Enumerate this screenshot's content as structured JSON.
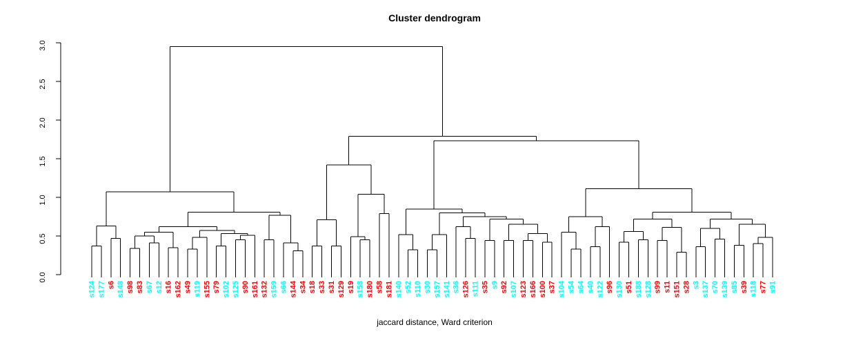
{
  "title": "Cluster dendrogram",
  "caption": "jaccard distance, Ward criterion",
  "chart_data": {
    "type": "dendrogram",
    "title": "Cluster dendrogram",
    "xlabel": "jaccard distance, Ward criterion",
    "ylabel": "",
    "ylim": [
      0,
      3
    ],
    "grid": false,
    "yticks": [
      "0.0",
      "0.5",
      "1.0",
      "1.5",
      "2.0",
      "2.5",
      "3.0"
    ],
    "colors": {
      "red": "#FF0000",
      "cyan": "#00FFFF",
      "line": "#000000"
    },
    "leaves": [
      {
        "label": "s124",
        "color": "cyan"
      },
      {
        "label": "s177",
        "color": "cyan"
      },
      {
        "label": "s6",
        "color": "red"
      },
      {
        "label": "s148",
        "color": "cyan"
      },
      {
        "label": "s98",
        "color": "red"
      },
      {
        "label": "s83",
        "color": "red"
      },
      {
        "label": "s67",
        "color": "cyan"
      },
      {
        "label": "s12",
        "color": "cyan"
      },
      {
        "label": "s16",
        "color": "red"
      },
      {
        "label": "s162",
        "color": "red"
      },
      {
        "label": "s49",
        "color": "red"
      },
      {
        "label": "s119",
        "color": "cyan"
      },
      {
        "label": "s155",
        "color": "red"
      },
      {
        "label": "s79",
        "color": "red"
      },
      {
        "label": "s102",
        "color": "cyan"
      },
      {
        "label": "s125",
        "color": "cyan"
      },
      {
        "label": "s90",
        "color": "red"
      },
      {
        "label": "s161",
        "color": "red"
      },
      {
        "label": "s132",
        "color": "red"
      },
      {
        "label": "s159",
        "color": "cyan"
      },
      {
        "label": "s66",
        "color": "cyan"
      },
      {
        "label": "s144",
        "color": "red"
      },
      {
        "label": "s34",
        "color": "red"
      },
      {
        "label": "s18",
        "color": "red"
      },
      {
        "label": "s33",
        "color": "red"
      },
      {
        "label": "s31",
        "color": "red"
      },
      {
        "label": "s129",
        "color": "red"
      },
      {
        "label": "s19",
        "color": "red"
      },
      {
        "label": "s158",
        "color": "cyan"
      },
      {
        "label": "s180",
        "color": "red"
      },
      {
        "label": "s58",
        "color": "red"
      },
      {
        "label": "s181",
        "color": "red"
      },
      {
        "label": "s140",
        "color": "cyan"
      },
      {
        "label": "s52",
        "color": "cyan"
      },
      {
        "label": "s110",
        "color": "cyan"
      },
      {
        "label": "s30",
        "color": "cyan"
      },
      {
        "label": "s157",
        "color": "cyan"
      },
      {
        "label": "s141",
        "color": "cyan"
      },
      {
        "label": "s36",
        "color": "cyan"
      },
      {
        "label": "s126",
        "color": "red"
      },
      {
        "label": "s111",
        "color": "cyan"
      },
      {
        "label": "s35",
        "color": "red"
      },
      {
        "label": "s9",
        "color": "cyan"
      },
      {
        "label": "s92",
        "color": "red"
      },
      {
        "label": "s107",
        "color": "cyan"
      },
      {
        "label": "s123",
        "color": "red"
      },
      {
        "label": "s166",
        "color": "red"
      },
      {
        "label": "s100",
        "color": "red"
      },
      {
        "label": "s37",
        "color": "red"
      },
      {
        "label": "s104",
        "color": "cyan"
      },
      {
        "label": "s54",
        "color": "cyan"
      },
      {
        "label": "s64",
        "color": "cyan"
      },
      {
        "label": "s40",
        "color": "cyan"
      },
      {
        "label": "s122",
        "color": "cyan"
      },
      {
        "label": "s96",
        "color": "red"
      },
      {
        "label": "s130",
        "color": "cyan"
      },
      {
        "label": "s51",
        "color": "red"
      },
      {
        "label": "s188",
        "color": "cyan"
      },
      {
        "label": "s128",
        "color": "cyan"
      },
      {
        "label": "s99",
        "color": "red"
      },
      {
        "label": "s11",
        "color": "red"
      },
      {
        "label": "s151",
        "color": "red"
      },
      {
        "label": "s28",
        "color": "red"
      },
      {
        "label": "s3",
        "color": "cyan"
      },
      {
        "label": "s137",
        "color": "cyan"
      },
      {
        "label": "s70",
        "color": "cyan"
      },
      {
        "label": "s139",
        "color": "cyan"
      },
      {
        "label": "s85",
        "color": "cyan"
      },
      {
        "label": "s39",
        "color": "red"
      },
      {
        "label": "s118",
        "color": "cyan"
      },
      {
        "label": "s77",
        "color": "red"
      },
      {
        "label": "s91",
        "color": "cyan"
      }
    ],
    "tree": [
      [
        [
          [
            0,
            1,
            0.37
          ],
          [
            2,
            3,
            0.47
          ],
          0.63
        ],
        [
          [
            [
              [
                [
                  4,
                  5,
                  0.34
                ],
                [
                  6,
                  7,
                  0.41
                ],
                0.5
              ],
              [
                8,
                9,
                0.35
              ],
              0.55
            ],
            [
              [
                [
                  10,
                  11,
                  0.33
                ],
                12,
                0.48
              ],
              [
                [
                  13,
                  14,
                  0.37
                ],
                [
                  [
                    15,
                    16,
                    0.45
                  ],
                  17,
                  0.51
                ],
                0.53
              ],
              0.57
            ],
            0.62
          ],
          [
            [
              18,
              19,
              0.45
            ],
            [
              20,
              [
                21,
                22,
                0.31
              ],
              0.41
            ],
            0.77
          ],
          0.81
        ],
        1.07
      ],
      [
        [
          [
            [
              23,
              24,
              0.37
            ],
            [
              25,
              26,
              0.37
            ],
            0.71
          ],
          [
            [
              27,
              [
                28,
                29,
                0.45
              ],
              0.49
            ],
            [
              30,
              31,
              0.79
            ],
            1.04
          ],
          1.42
        ],
        [
          [
            [
              32,
              [
                33,
                34,
                0.32
              ],
              0.52
            ],
            [
              [
                [
                  35,
                  36,
                  0.32
                ],
                37,
                0.52
              ],
              [
                [
                  38,
                  [
                    39,
                    40,
                    0.47
                  ],
                  0.62
                ],
                [
                  [
                    41,
                    42,
                    0.44
                  ],
                  [
                    [
                      43,
                      44,
                      0.44
                    ],
                    [
                      [
                        45,
                        46,
                        0.44
                      ],
                      [
                        47,
                        48,
                        0.42
                      ],
                      0.53
                    ],
                    0.65
                  ],
                  0.72
                ],
                0.75
              ],
              0.8
            ],
            0.85
          ],
          [
            [
              [
                49,
                [
                  50,
                  51,
                  0.33
                ],
                0.55
              ],
              [
                [
                  52,
                  53,
                  0.36
                ],
                54,
                0.62
              ],
              0.75
            ],
            [
              [
                [
                  [
                    55,
                    56,
                    0.42
                  ],
                  [
                    57,
                    58,
                    0.45
                  ],
                  0.56
                ],
                [
                  [
                    59,
                    60,
                    0.44
                  ],
                  [
                    61,
                    62,
                    0.29
                  ],
                  0.61
                ],
                0.72
              ],
              [
                [
                  [
                    63,
                    64,
                    0.36
                  ],
                  [
                    65,
                    66,
                    0.46
                  ],
                  0.6
                ],
                [
                  [
                    67,
                    68,
                    0.38
                  ],
                  [
                    [
                      69,
                      70,
                      0.4
                    ],
                    71,
                    0.48
                  ],
                  0.65
                ],
                0.72
              ],
              0.81
            ],
            1.11
          ],
          1.73
        ],
        1.79
      ],
      2.95
    ]
  }
}
